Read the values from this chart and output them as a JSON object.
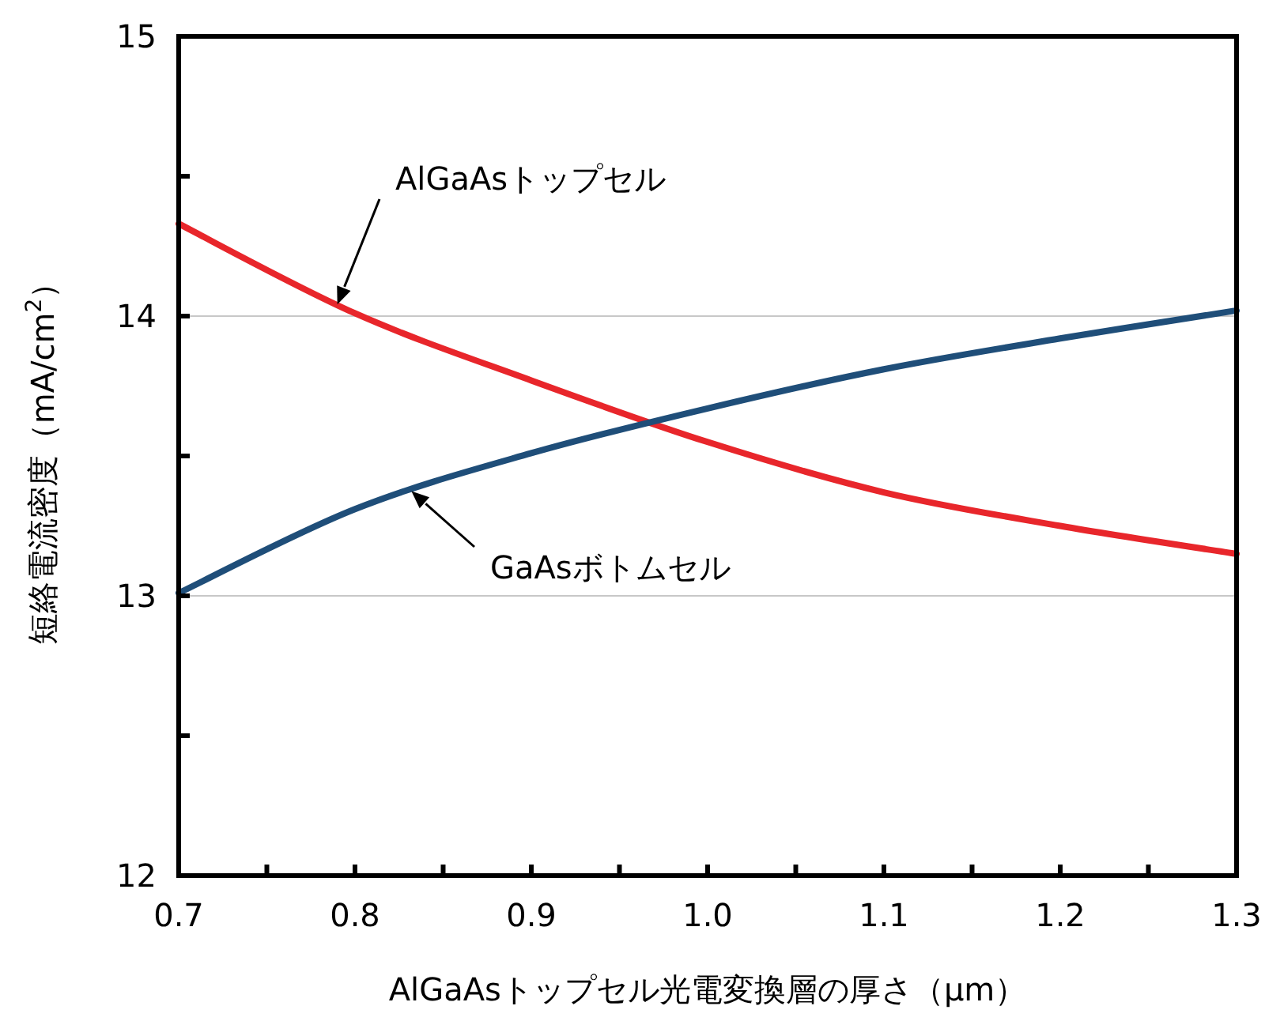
{
  "chart_data": {
    "type": "line",
    "xlabel": "AlGaAsトップセル光電変換層の厚さ（μm）",
    "ylabel": "短絡電流密度（mA/cm$^{2}$）",
    "x": [
      0.7,
      0.8,
      0.9,
      1.0,
      1.1,
      1.2,
      1.3
    ],
    "series": [
      {
        "name": "AlGaAsトップセル",
        "color": "#e8262b",
        "values": [
          14.33,
          14.01,
          13.77,
          13.55,
          13.37,
          13.25,
          13.15
        ]
      },
      {
        "name": "GaAsボトムセル",
        "color": "#1f4e79",
        "values": [
          13.01,
          13.31,
          13.51,
          13.67,
          13.81,
          13.92,
          14.02
        ]
      }
    ],
    "xlim": [
      0.7,
      1.3
    ],
    "xticks": [
      {
        "value": 0.7,
        "label": "0.7"
      },
      {
        "value": 0.75,
        "label": null
      },
      {
        "value": 0.8,
        "label": "0.8"
      },
      {
        "value": 0.85,
        "label": null
      },
      {
        "value": 0.9,
        "label": "0.9"
      },
      {
        "value": 0.95,
        "label": null
      },
      {
        "value": 1.0,
        "label": "1.0"
      },
      {
        "value": 1.05,
        "label": null
      },
      {
        "value": 1.1,
        "label": "1.1"
      },
      {
        "value": 1.15,
        "label": null
      },
      {
        "value": 1.2,
        "label": "1.2"
      },
      {
        "value": 1.25,
        "label": null
      },
      {
        "value": 1.3,
        "label": "1.3"
      }
    ],
    "ylim": [
      12,
      15
    ],
    "yticks": [
      12,
      {
        "value": 12.5,
        "label": null
      },
      13,
      {
        "value": 13.5,
        "label": null
      },
      14,
      {
        "value": 14.5,
        "label": null
      },
      15
    ],
    "grid": "y",
    "marker": "none",
    "line_style": "solid"
  }
}
